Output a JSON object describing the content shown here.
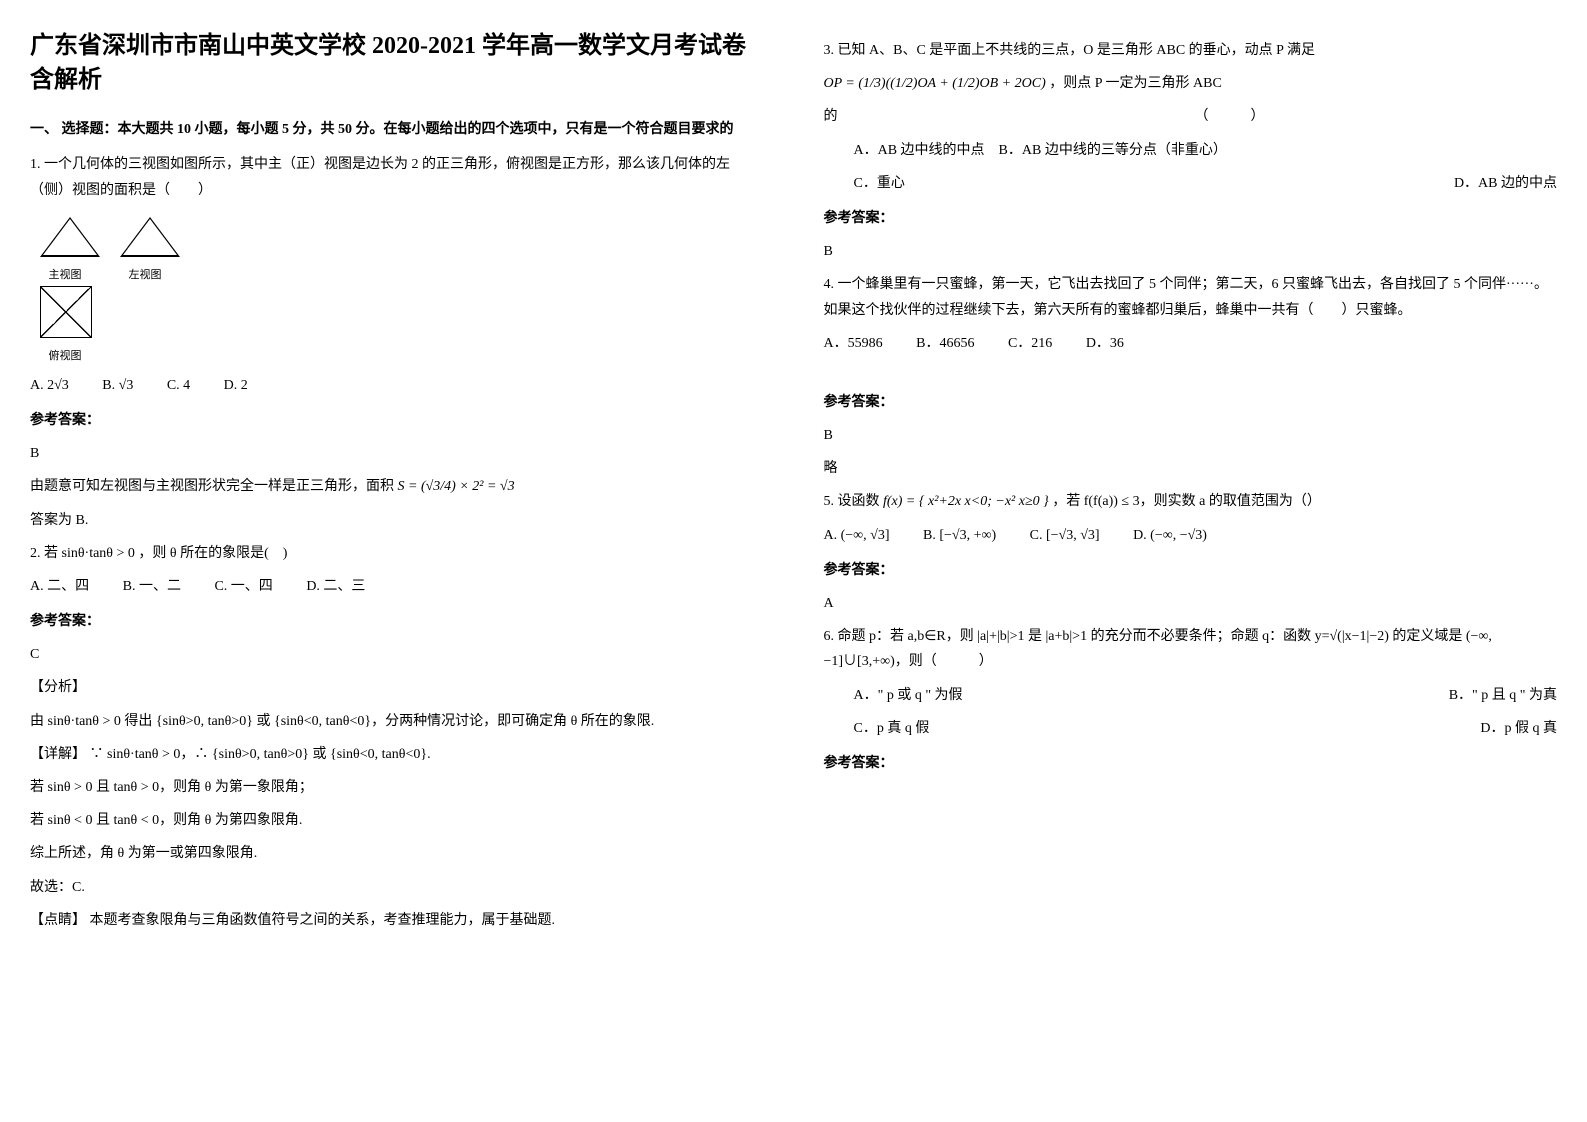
{
  "title": "广东省深圳市市南山中英文学校 2020-2021 学年高一数学文月考试卷含解析",
  "section1_head": "一、 选择题：本大题共 10 小题，每小题 5 分，共 50 分。在每小题给出的四个选项中，只有是一个符合题目要求的",
  "q1_text": "1. 一个几何体的三视图如图所示，其中主（正）视图是边长为 2 的正三角形，俯视图是正方形，那么该几何体的左（侧）视图的面积是（　　）",
  "view_main": "主视图",
  "view_left": "左视图",
  "view_top": "俯视图",
  "q1_optA": "A. 2√3",
  "q1_optB": "B. √3",
  "q1_optC": "C. 4",
  "q1_optD": "D. 2",
  "answer_label": "参考答案：",
  "q1_ans": "B",
  "q1_expl1": "由题意可知左视图与主视图形状完全一样是正三角形，面积",
  "q1_formula": "S = (√3/4) × 2² = √3",
  "q1_expl2": "答案为 B.",
  "q2_text": "2. 若 sinθ·tanθ > 0 ，则 θ 所在的象限是(　)",
  "q2_optA": "A. 二、四",
  "q2_optB": "B. 一、二",
  "q2_optC": "C. 一、四",
  "q2_optD": "D. 二、三",
  "q2_ans": "C",
  "q2_fenxi_label": "【分析】",
  "q2_fenxi": "由 sinθ·tanθ > 0 得出 {sinθ>0, tanθ>0} 或 {sinθ<0, tanθ<0}，分两种情况讨论，即可确定角 θ 所在的象限.",
  "q2_xiangjie_label": "【详解】",
  "q2_xiangjie1": "∵ sinθ·tanθ > 0，∴ {sinθ>0, tanθ>0} 或 {sinθ<0, tanθ<0}.",
  "q2_xiangjie2": "若 sinθ > 0 且 tanθ > 0，则角 θ 为第一象限角；",
  "q2_xiangjie3": "若 sinθ < 0 且 tanθ < 0，则角 θ 为第四象限角.",
  "q2_xiangjie4": "综上所述，角 θ 为第一或第四象限角.",
  "q2_xiangjie5": "故选：C.",
  "q2_dianjing_label": "【点睛】",
  "q2_dianjing": "本题考查象限角与三角函数值符号之间的关系，考查推理能力，属于基础题.",
  "q3_text1": "3. 已知 A、B、C 是平面上不共线的三点，O 是三角形 ABC 的垂心，动点 P 满足",
  "q3_formula": "OP = (1/3)((1/2)OA + (1/2)OB + 2OC)",
  "q3_text2": "，则点 P 一定为三角形 ABC",
  "q3_text3": "的　　　　　　　　　　　　　　　　　　　　　　　　　　（　　　）",
  "q3_optA": "A．AB 边中线的中点　B．AB 边中线的三等分点（非重心）",
  "q3_optC": "C．重心",
  "q3_optD": "D．AB 边的中点",
  "q3_ans": "B",
  "q4_text": "4. 一个蜂巢里有一只蜜蜂，第一天，它飞出去找回了 5 个同伴；第二天，6 只蜜蜂飞出去，各自找回了 5 个同伴······。如果这个找伙伴的过程继续下去，第六天所有的蜜蜂都归巢后，蜂巢中一共有（　　）只蜜蜂。",
  "q4_optA": "A．55986",
  "q4_optB": "B．46656",
  "q4_optC": "C．216",
  "q4_optD": "D．36",
  "q4_ans": "B",
  "q4_note": "略",
  "q5_text1": "5. 设函数",
  "q5_formula": "f(x) = { x²+2x  x<0;  −x²  x≥0 }",
  "q5_text2": "，若 f(f(a)) ≤ 3，则实数 a 的取值范围为（）",
  "q5_optA": "A. (−∞, √3]",
  "q5_optB": "B. [−√3, +∞)",
  "q5_optC": "C. [−√3, √3]",
  "q5_optD": "D. (−∞, −√3)",
  "q5_ans": "A",
  "q6_text1": "6. 命题 p：若 a,b∈R，则 |a|+|b|>1 是 |a+b|>1 的充分而不必要条件；命题 q：函数 y=√(|x−1|−2) 的定义域是 (−∞,−1]∪[3,+∞)，则（　　　）",
  "q6_optA": "A．\" p 或 q \" 为假",
  "q6_optB": "B．\" p 且 q \" 为真",
  "q6_optC": "C．p 真 q 假",
  "q6_optD": "D．p 假 q 真"
}
